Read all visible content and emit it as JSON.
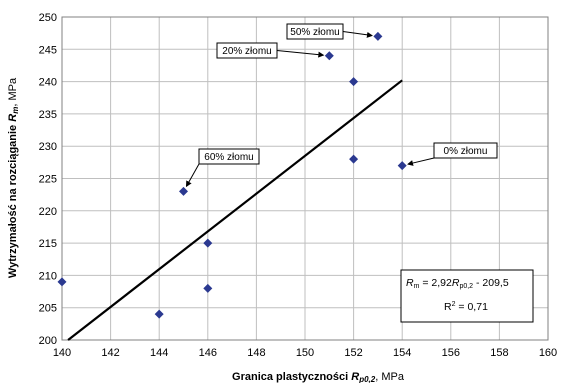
{
  "chart_data": {
    "type": "scatter",
    "xlabel": "Granica plastyczności",
    "xlabel_symbol": "R",
    "xlabel_subscript": "p0,2",
    "xlabel_unit": ", MPa",
    "ylabel": "Wytrzymałość na rozciąganie",
    "ylabel_symbol": "R",
    "ylabel_subscript": "m",
    "ylabel_unit": ", MPa",
    "xlim": [
      140,
      160
    ],
    "ylim": [
      200,
      250
    ],
    "xticks": [
      140,
      142,
      144,
      146,
      148,
      150,
      152,
      154,
      156,
      158,
      160
    ],
    "yticks": [
      200,
      205,
      210,
      215,
      220,
      225,
      230,
      235,
      240,
      245,
      250
    ],
    "grid": true,
    "legend": "none",
    "marker_color": "#2b3990",
    "line_color": "#000000",
    "series": [
      {
        "points": [
          {
            "x": 140,
            "y": 209
          },
          {
            "x": 144,
            "y": 204
          },
          {
            "x": 145,
            "y": 223
          },
          {
            "x": 146,
            "y": 215
          },
          {
            "x": 146,
            "y": 208
          },
          {
            "x": 151,
            "y": 244
          },
          {
            "x": 152,
            "y": 240
          },
          {
            "x": 152,
            "y": 228
          },
          {
            "x": 153,
            "y": 247
          },
          {
            "x": 154,
            "y": 227
          }
        ]
      }
    ],
    "trendline": {
      "x_start": 140.25,
      "y_start": 200,
      "x_end": 154,
      "y_end": 240.2
    },
    "annotations": [
      {
        "text": "50% złomu",
        "x": 153,
        "y": 247
      },
      {
        "text": "20% złomu",
        "x": 151,
        "y": 244
      },
      {
        "text": "60% złomu",
        "x": 145,
        "y": 223
      },
      {
        "text": "0% złomu",
        "x": 154,
        "y": 227
      }
    ],
    "equation": {
      "line1_lhs_symbol": "R",
      "line1_lhs_sub": "m",
      "line1_mid": " = 2,92",
      "line1_rhs_symbol": "R",
      "line1_rhs_sub": "p0,2",
      "line1_tail": " - 209,5",
      "line2_prefix": "R",
      "line2_sup": "2",
      "line2_tail": " = 0,71"
    }
  }
}
